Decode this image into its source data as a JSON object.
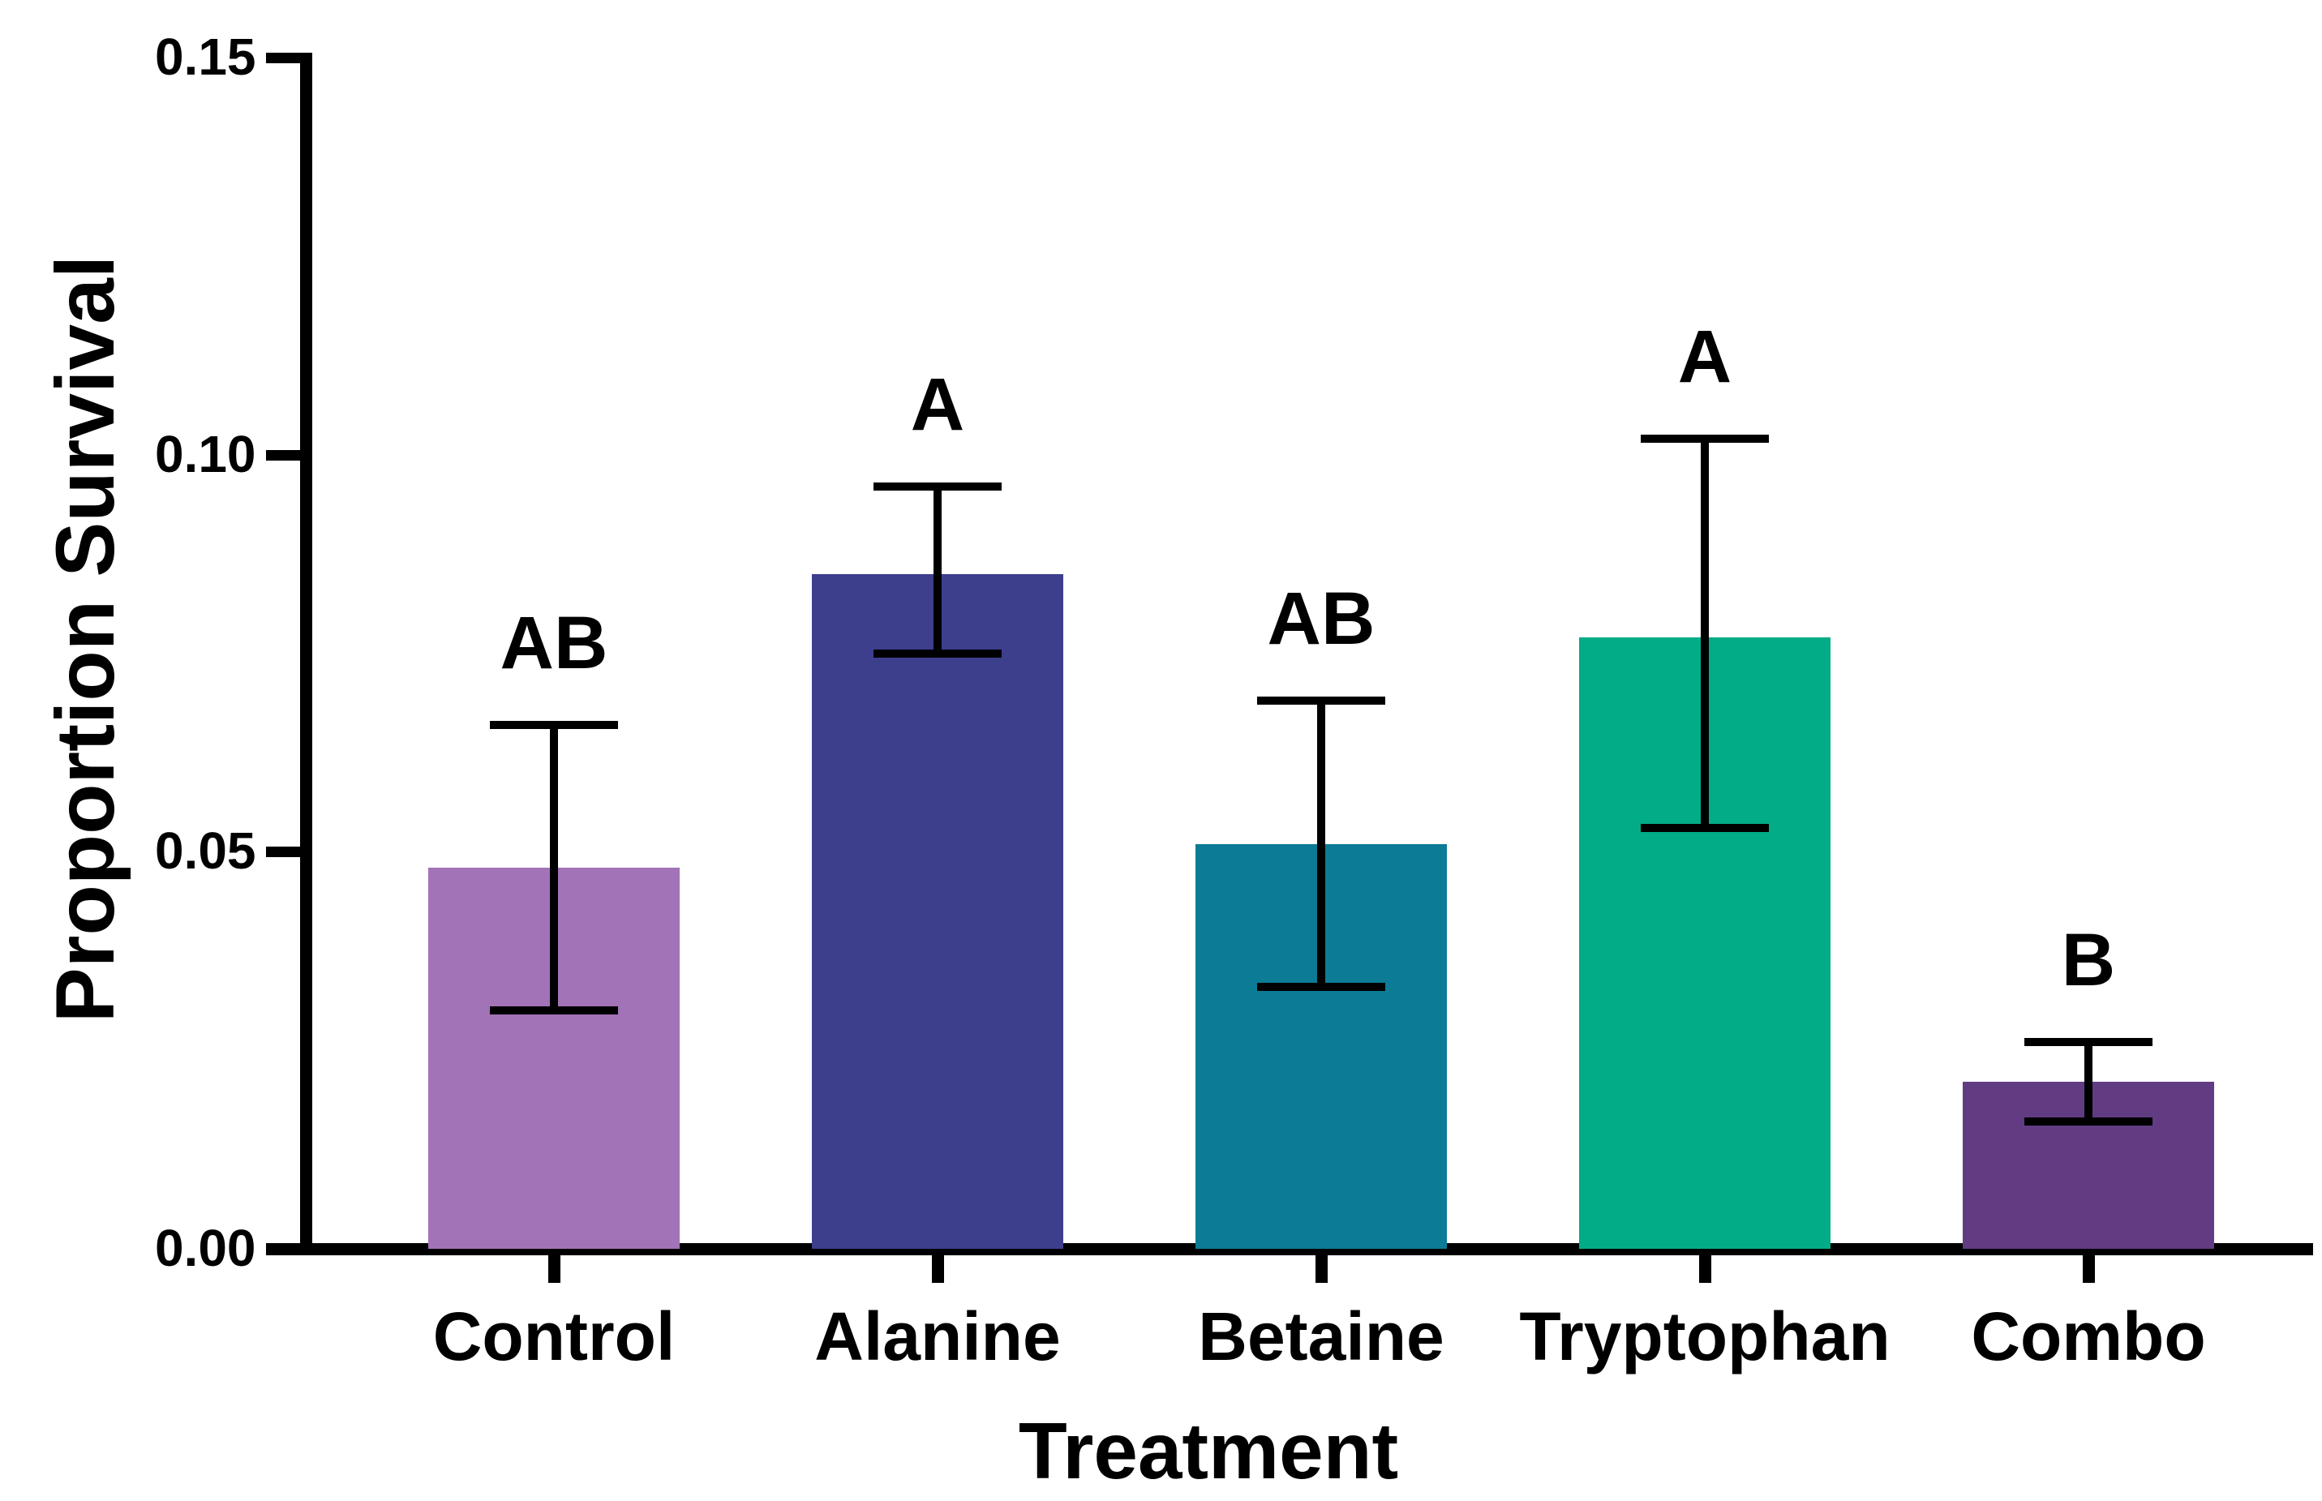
{
  "figure_title": "",
  "chart_data": {
    "type": "bar",
    "title": "",
    "xlabel": "Treatment",
    "ylabel": "Proportion Survival",
    "ylim": [
      0,
      0.15
    ],
    "grid": false,
    "legend_position": "none",
    "background": "#FFFFFF",
    "axis_color": "#000000",
    "yticks": [
      {
        "value": 0.0,
        "label": "0.00"
      },
      {
        "value": 0.05,
        "label": "0.05"
      },
      {
        "value": 0.1,
        "label": "0.10"
      },
      {
        "value": 0.15,
        "label": "0.15"
      }
    ],
    "categories": [
      "Control",
      "Alanine",
      "Betaine",
      "Tryptophan",
      "Combo"
    ],
    "bars": [
      {
        "category": "Control",
        "value": 0.048,
        "err_low": 0.03,
        "err_high": 0.066,
        "sig_letter": "AB",
        "color": "#A273B7"
      },
      {
        "category": "Alanine",
        "value": 0.085,
        "err_low": 0.075,
        "err_high": 0.096,
        "sig_letter": "A",
        "color": "#3D3F8D"
      },
      {
        "category": "Betaine",
        "value": 0.051,
        "err_low": 0.033,
        "err_high": 0.069,
        "sig_letter": "AB",
        "color": "#0C7B95"
      },
      {
        "category": "Tryptophan",
        "value": 0.077,
        "err_low": 0.053,
        "err_high": 0.102,
        "sig_letter": "A",
        "color": "#02AC86"
      },
      {
        "category": "Combo",
        "value": 0.021,
        "err_low": 0.016,
        "err_high": 0.026,
        "sig_letter": "B",
        "color": "#613C83"
      }
    ]
  }
}
